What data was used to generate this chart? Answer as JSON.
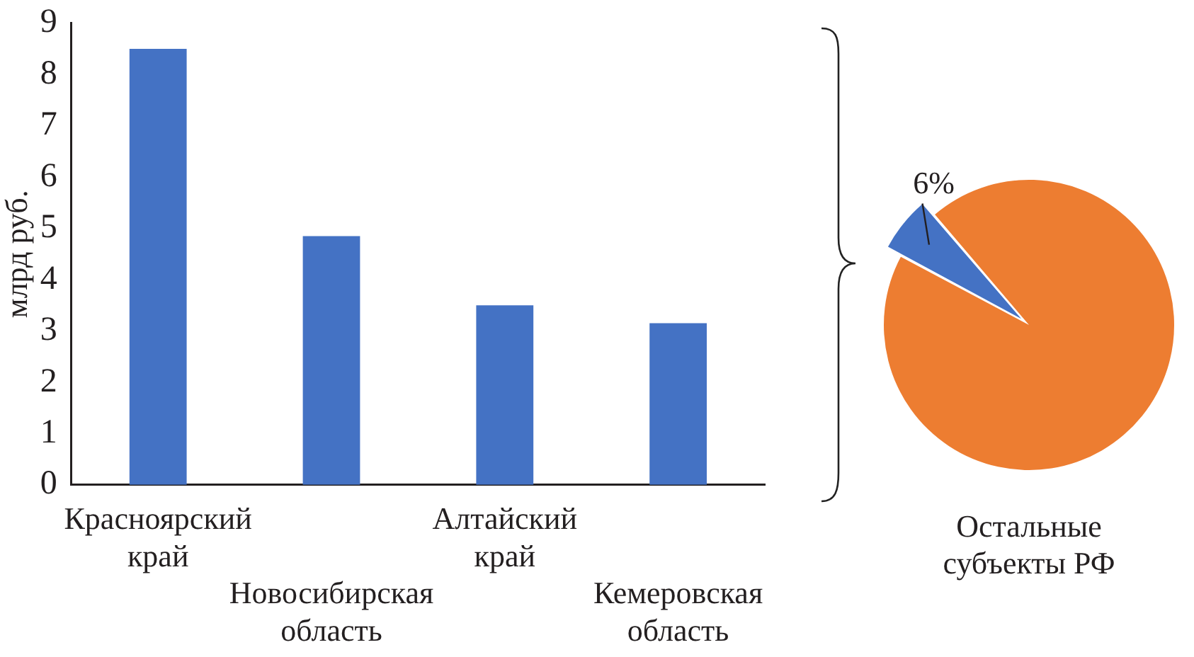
{
  "chart_data": [
    {
      "type": "bar",
      "ylabel": "млрд руб.",
      "categories": [
        "Красноярский край",
        "Новосибирская область",
        "Алтайский край",
        "Кемеровская область"
      ],
      "values": [
        8.5,
        4.85,
        3.5,
        3.15
      ],
      "color": "#4472c4",
      "ylim": [
        0,
        9
      ],
      "yticks": [
        0,
        1,
        2,
        3,
        4,
        5,
        6,
        7,
        8,
        9
      ],
      "grid": false,
      "legend": false
    },
    {
      "type": "pie",
      "categories": [
        null,
        "Остальные субъекты РФ"
      ],
      "values": [
        6,
        94
      ],
      "colors": [
        "#4472c4",
        "#ed7d31"
      ],
      "value_labels": [
        "6%",
        null
      ],
      "legend": false
    }
  ]
}
